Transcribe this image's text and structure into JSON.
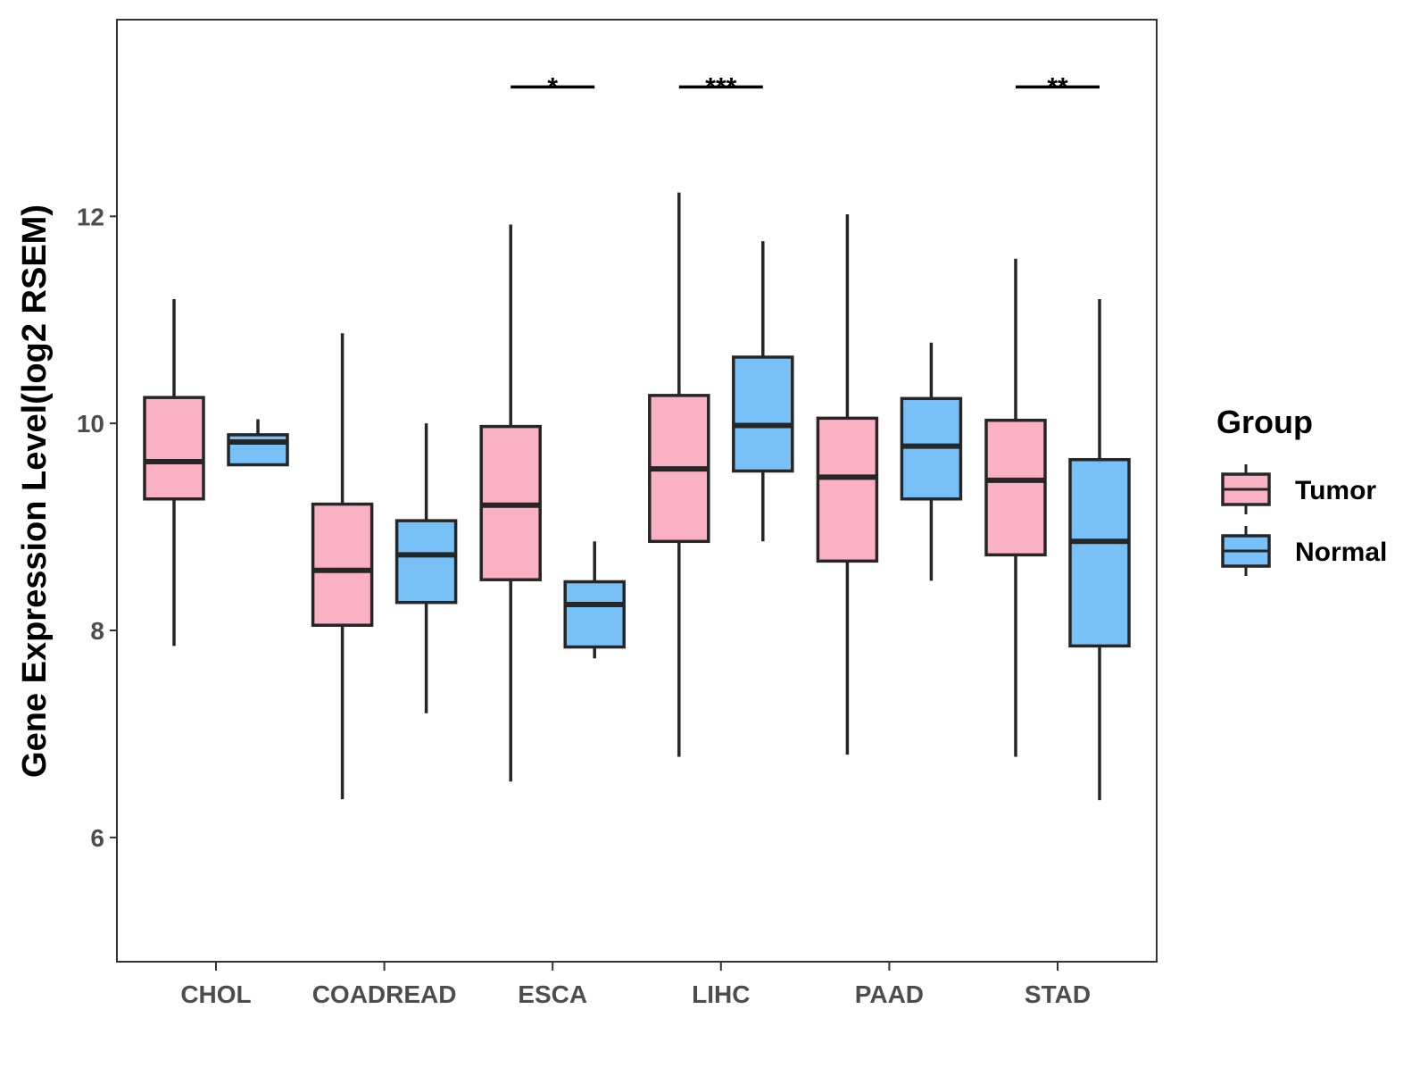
{
  "chart_data": {
    "type": "boxplot",
    "title": "",
    "xlabel": "",
    "ylabel": "Gene Expression Level(log2 RSEM)",
    "ylim": [
      4.8,
      13.9
    ],
    "yticks": [
      6,
      8,
      10,
      12
    ],
    "grid": false,
    "legend_position": "right",
    "legend_title": "Group",
    "categories": [
      "CHOL",
      "COADREAD",
      "ESCA",
      "LIHC",
      "PAAD",
      "STAD"
    ],
    "series": [
      {
        "name": "Tumor",
        "color": "#FAB1C4",
        "boxes": [
          {
            "min": 7.85,
            "q1": 9.27,
            "median": 9.63,
            "q3": 10.25,
            "max": 11.2
          },
          {
            "min": 6.37,
            "q1": 8.05,
            "median": 8.58,
            "q3": 9.22,
            "max": 10.87
          },
          {
            "min": 6.54,
            "q1": 8.49,
            "median": 9.21,
            "q3": 9.97,
            "max": 11.92
          },
          {
            "min": 6.78,
            "q1": 8.86,
            "median": 9.56,
            "q3": 10.27,
            "max": 12.23
          },
          {
            "min": 6.8,
            "q1": 8.67,
            "median": 9.48,
            "q3": 10.05,
            "max": 12.02
          },
          {
            "min": 6.78,
            "q1": 8.73,
            "median": 9.45,
            "q3": 10.03,
            "max": 11.59
          }
        ]
      },
      {
        "name": "Normal",
        "color": "#78C1F8",
        "boxes": [
          {
            "min": 9.6,
            "q1": 9.6,
            "median": 9.82,
            "q3": 9.89,
            "max": 10.04
          },
          {
            "min": 7.2,
            "q1": 8.27,
            "median": 8.73,
            "q3": 9.06,
            "max": 10.0
          },
          {
            "min": 7.73,
            "q1": 7.84,
            "median": 8.25,
            "q3": 8.47,
            "max": 8.86
          },
          {
            "min": 8.86,
            "q1": 9.54,
            "median": 9.98,
            "q3": 10.64,
            "max": 11.76
          },
          {
            "min": 8.48,
            "q1": 9.27,
            "median": 9.78,
            "q3": 10.24,
            "max": 10.78
          },
          {
            "min": 6.36,
            "q1": 7.85,
            "median": 8.86,
            "q3": 9.65,
            "max": 11.2
          }
        ]
      }
    ],
    "annotations": [
      {
        "category": "ESCA",
        "label": "*",
        "y": 13.25
      },
      {
        "category": "LIHC",
        "label": "***",
        "y": 13.25
      },
      {
        "category": "STAD",
        "label": "**",
        "y": 13.25
      }
    ]
  }
}
